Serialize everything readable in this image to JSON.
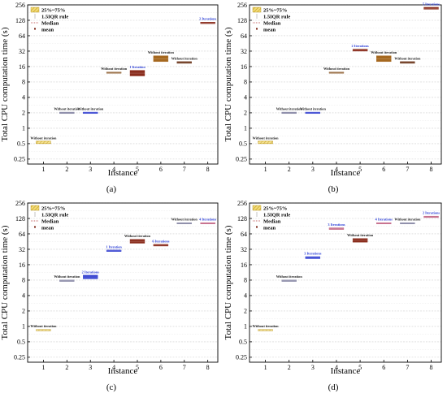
{
  "colors": {
    "blue_annotation": "#2b3ed6",
    "black_annotation": "#1a1a1a",
    "grid": "#d0d0d0",
    "median": "#b03030",
    "mean": "#7a2010",
    "yellow": "#e8c64a",
    "brown": "#8b5a2b",
    "orange_brown": "#a5681f",
    "dark_brown": "#6a3418",
    "red_brown": "#8a2c1c",
    "blue": "#3340d0",
    "mauve": "#c06080",
    "gray_purple": "#8080a0"
  },
  "chart_data": [
    {
      "type": "box",
      "panel_label": "(a)",
      "xlabel": "Instance",
      "ylabel": "Total CPU computation time (s)",
      "y_scale": "log2",
      "ylim": [
        0.2,
        256
      ],
      "yticks": [
        "0.25",
        "0.5",
        "1",
        "2",
        "4",
        "8",
        "16",
        "32",
        "64",
        "128",
        "256"
      ],
      "categories": [
        "1",
        "2",
        "3",
        "4",
        "5",
        "6",
        "7",
        "8"
      ],
      "legend": [
        "25%~75%",
        "1.5IQR rule",
        "Median",
        "mean"
      ],
      "boxes": [
        {
          "x": 1,
          "low": 0.5,
          "high": 0.56,
          "color": "yellow",
          "hatched": true,
          "label": "Without iteration",
          "label_color": "black_annotation"
        },
        {
          "x": 2,
          "low": 1.95,
          "high": 2.05,
          "color": "gray_purple",
          "label": "Without iteration",
          "label_color": "black_annotation"
        },
        {
          "x": 3,
          "low": 1.95,
          "high": 2.05,
          "color": "blue",
          "label": "Without iteration",
          "label_color": "black_annotation"
        },
        {
          "x": 4,
          "low": 11.8,
          "high": 12.5,
          "color": "brown",
          "label": "Without iteration",
          "label_color": "black_annotation"
        },
        {
          "x": 5,
          "low": 10.5,
          "high": 13.5,
          "color": "red_brown",
          "label": "1 Iteration",
          "label_color": "blue_annotation"
        },
        {
          "x": 6,
          "low": 20,
          "high": 26,
          "color": "orange_brown",
          "label": "Without iteration",
          "label_color": "black_annotation"
        },
        {
          "x": 7,
          "low": 18.5,
          "high": 20,
          "color": "dark_brown",
          "label": "Without iteration",
          "label_color": "black_annotation"
        },
        {
          "x": 8,
          "low": 110,
          "high": 118,
          "color": "red_brown",
          "label": "2 Iterations",
          "label_color": "blue_annotation"
        }
      ]
    },
    {
      "type": "box",
      "panel_label": "(b)",
      "xlabel": "Instance",
      "ylabel": "Total CPU computation time (s)",
      "y_scale": "log2",
      "ylim": [
        0.2,
        256
      ],
      "yticks": [
        "0.25",
        "0.5",
        "1",
        "2",
        "4",
        "8",
        "16",
        "32",
        "64",
        "128",
        "256"
      ],
      "categories": [
        "1",
        "2",
        "3",
        "4",
        "5",
        "6",
        "7",
        "8"
      ],
      "legend": [
        "25%~75%",
        "1.5IQR rule",
        "Median",
        "mean"
      ],
      "boxes": [
        {
          "x": 1,
          "low": 0.5,
          "high": 0.56,
          "color": "yellow",
          "hatched": true,
          "label": "Without iteration",
          "label_color": "black_annotation"
        },
        {
          "x": 2,
          "low": 1.95,
          "high": 2.05,
          "color": "gray_purple",
          "label": "Without iteration",
          "label_color": "black_annotation"
        },
        {
          "x": 3,
          "low": 1.95,
          "high": 2.05,
          "color": "blue",
          "label": "Without iteration",
          "label_color": "black_annotation"
        },
        {
          "x": 4,
          "low": 11.8,
          "high": 12.5,
          "color": "brown",
          "label": "Without iteration",
          "label_color": "black_annotation"
        },
        {
          "x": 5,
          "low": 32,
          "high": 35,
          "color": "red_brown",
          "label": "2 Iterations",
          "label_color": "blue_annotation"
        },
        {
          "x": 6,
          "low": 20,
          "high": 26,
          "color": "orange_brown",
          "label": "Without iteration",
          "label_color": "black_annotation"
        },
        {
          "x": 7,
          "low": 18.5,
          "high": 20,
          "color": "dark_brown",
          "label": "Without iteration",
          "label_color": "black_annotation"
        },
        {
          "x": 8,
          "low": 210,
          "high": 230,
          "color": "red_brown",
          "label": "5 Iterations",
          "label_color": "blue_annotation"
        }
      ]
    },
    {
      "type": "box",
      "panel_label": "(c)",
      "xlabel": "Instance",
      "ylabel": "Total CPU computation time (s)",
      "y_scale": "log2",
      "ylim": [
        0.2,
        256
      ],
      "yticks": [
        "0.25",
        "0.5",
        "1",
        "2",
        "4",
        "8",
        "16",
        "32",
        "64",
        "128",
        "256"
      ],
      "categories": [
        "1",
        "2",
        "3",
        "4",
        "5",
        "6",
        "7",
        "8"
      ],
      "legend": [
        "25%~75%",
        "1.5IQR rule",
        "Median",
        "mean"
      ],
      "boxes": [
        {
          "x": 1,
          "low": 0.82,
          "high": 0.87,
          "color": "yellow",
          "hatched": true,
          "label": "Without iteration",
          "label_color": "black_annotation"
        },
        {
          "x": 2,
          "low": 7.6,
          "high": 8.0,
          "color": "gray_purple",
          "label": "Without iteration",
          "label_color": "black_annotation"
        },
        {
          "x": 3,
          "low": 8.5,
          "high": 10,
          "color": "blue",
          "label": "2 Iterations",
          "label_color": "blue_annotation"
        },
        {
          "x": 4,
          "low": 29,
          "high": 31,
          "color": "blue",
          "label": "1 Iteration",
          "label_color": "blue_annotation"
        },
        {
          "x": 5,
          "low": 42,
          "high": 50,
          "color": "red_brown",
          "label": "Without iteration",
          "label_color": "black_annotation"
        },
        {
          "x": 6,
          "low": 37,
          "high": 40,
          "color": "red_brown",
          "label": "6 Iterations",
          "label_color": "blue_annotation"
        },
        {
          "x": 7,
          "low": 100,
          "high": 106,
          "color": "gray_purple",
          "label": "Without iteration",
          "label_color": "black_annotation"
        },
        {
          "x": 8,
          "low": 100,
          "high": 106,
          "color": "mauve",
          "label": "4 Iterations",
          "label_color": "blue_annotation"
        }
      ]
    },
    {
      "type": "box",
      "panel_label": "(d)",
      "xlabel": "Instance",
      "ylabel": "Total CPU computation time (s)",
      "y_scale": "log2",
      "ylim": [
        0.2,
        256
      ],
      "yticks": [
        "0.25",
        "0.5",
        "1",
        "2",
        "4",
        "8",
        "16",
        "32",
        "64",
        "128",
        "256"
      ],
      "categories": [
        "1",
        "2",
        "3",
        "4",
        "5",
        "6",
        "7",
        "8"
      ],
      "legend": [
        "25%~75%",
        "1.5IQR rule",
        "Median",
        "mean"
      ],
      "boxes": [
        {
          "x": 1,
          "low": 0.82,
          "high": 0.87,
          "color": "yellow",
          "hatched": true,
          "label": "Without iteration",
          "label_color": "black_annotation"
        },
        {
          "x": 2,
          "low": 7.6,
          "high": 8.0,
          "color": "gray_purple",
          "label": "Without iteration",
          "label_color": "black_annotation"
        },
        {
          "x": 3,
          "low": 21,
          "high": 23,
          "color": "blue",
          "label": "3 Iterations",
          "label_color": "blue_annotation"
        },
        {
          "x": 4,
          "low": 78,
          "high": 84,
          "color": "mauve",
          "label": "3 Iterations",
          "label_color": "blue_annotation"
        },
        {
          "x": 5,
          "low": 44,
          "high": 52,
          "color": "red_brown",
          "label": "Without iteration",
          "label_color": "black_annotation"
        },
        {
          "x": 6,
          "low": 100,
          "high": 106,
          "color": "mauve",
          "label": "4 Iterations",
          "label_color": "blue_annotation"
        },
        {
          "x": 7,
          "low": 100,
          "high": 106,
          "color": "gray_purple",
          "label": "Without iteration",
          "label_color": "black_annotation"
        },
        {
          "x": 8,
          "low": 135,
          "high": 140,
          "color": "mauve",
          "label": "2 Iterations",
          "label_color": "blue_annotation"
        }
      ]
    }
  ]
}
